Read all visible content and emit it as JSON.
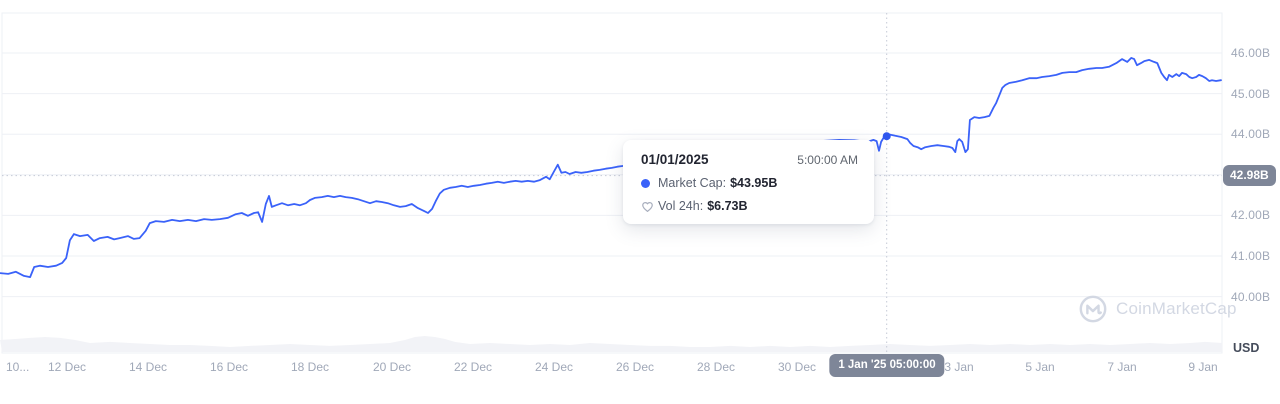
{
  "colors": {
    "line": "#3a62f9",
    "hover_dot": "#2e56ee",
    "badge_bg": "#7e8698",
    "axis_text": "#a0a8b8",
    "gridline": "#eef0f5",
    "volume_fill": "#f2f3f7",
    "crosshair": "#c5cad6",
    "watermark": "#d3d8e3"
  },
  "tooltip": {
    "date": "01/01/2025",
    "time": "5:00:00 AM",
    "rows": [
      {
        "icon": "market-cap-dot",
        "label": "Market Cap:",
        "value": "$43.95B"
      },
      {
        "icon": "heart",
        "label": "Vol 24h:",
        "value": "$6.73B"
      }
    ]
  },
  "crosshair": {
    "x_label": "1 Jan '25 05:00:00",
    "y_label": "42.98B",
    "day_index": 22.208,
    "value_b": 42.98
  },
  "y_axis": {
    "unit_label": "USD",
    "ticks": [
      {
        "label": "46.00B",
        "value": 46
      },
      {
        "label": "45.00B",
        "value": 45
      },
      {
        "label": "44.00B",
        "value": 44
      },
      {
        "label": "42.00B",
        "value": 42
      },
      {
        "label": "41.00B",
        "value": 41
      },
      {
        "label": "40.00B",
        "value": 40
      }
    ]
  },
  "x_axis": {
    "ticks": [
      {
        "label": "10...",
        "day": 0,
        "edge": true
      },
      {
        "label": "12 Dec",
        "day": 2
      },
      {
        "label": "14 Dec",
        "day": 4
      },
      {
        "label": "16 Dec",
        "day": 6
      },
      {
        "label": "18 Dec",
        "day": 8
      },
      {
        "label": "20 Dec",
        "day": 10
      },
      {
        "label": "22 Dec",
        "day": 12
      },
      {
        "label": "24 Dec",
        "day": 14
      },
      {
        "label": "26 Dec",
        "day": 16
      },
      {
        "label": "28 Dec",
        "day": 18
      },
      {
        "label": "30 Dec",
        "day": 20
      },
      {
        "label": "3 Jan",
        "day": 24
      },
      {
        "label": "5 Jan",
        "day": 26
      },
      {
        "label": "7 Jan",
        "day": 28
      },
      {
        "label": "9 Jan",
        "day": 30
      }
    ]
  },
  "watermark": {
    "text": "CoinMarketCap"
  },
  "chart_data": {
    "type": "line",
    "x_unit": "days since 10 Dec 00:00",
    "x_range_days": [
      0.35,
      30.45
    ],
    "ylim": [
      40,
      46
    ],
    "y_unit": "USD billions",
    "y_gridlines": [
      40,
      41,
      42,
      43,
      44,
      45,
      46
    ],
    "legend_position": "none",
    "grid": "horizontal",
    "hover_point": {
      "day": 22.21,
      "value_b": 43.95,
      "date": "01/01/2025",
      "time": "5:00:00 AM",
      "market_cap": "$43.95B",
      "vol_24h": "$6.73B"
    },
    "series": [
      {
        "name": "Market Cap",
        "points": [
          [
            0.35,
            40.58
          ],
          [
            0.55,
            40.56
          ],
          [
            0.74,
            40.61
          ],
          [
            0.94,
            40.51
          ],
          [
            1.09,
            40.48
          ],
          [
            1.19,
            40.73
          ],
          [
            1.33,
            40.76
          ],
          [
            1.53,
            40.73
          ],
          [
            1.73,
            40.76
          ],
          [
            1.88,
            40.83
          ],
          [
            1.98,
            40.95
          ],
          [
            2.07,
            41.39
          ],
          [
            2.17,
            41.54
          ],
          [
            2.32,
            41.49
          ],
          [
            2.51,
            41.52
          ],
          [
            2.66,
            41.37
          ],
          [
            2.81,
            41.44
          ],
          [
            3.0,
            41.47
          ],
          [
            3.16,
            41.41
          ],
          [
            3.3,
            41.44
          ],
          [
            3.5,
            41.49
          ],
          [
            3.65,
            41.42
          ],
          [
            3.79,
            41.44
          ],
          [
            3.94,
            41.62
          ],
          [
            4.04,
            41.81
          ],
          [
            4.19,
            41.86
          ],
          [
            4.39,
            41.84
          ],
          [
            4.59,
            41.89
          ],
          [
            4.78,
            41.86
          ],
          [
            4.98,
            41.89
          ],
          [
            5.18,
            41.86
          ],
          [
            5.38,
            41.91
          ],
          [
            5.57,
            41.89
          ],
          [
            5.77,
            41.91
          ],
          [
            5.97,
            41.94
          ],
          [
            6.16,
            42.03
          ],
          [
            6.31,
            42.06
          ],
          [
            6.46,
            41.99
          ],
          [
            6.61,
            42.06
          ],
          [
            6.71,
            42.08
          ],
          [
            6.81,
            41.84
          ],
          [
            6.9,
            42.28
          ],
          [
            6.98,
            42.48
          ],
          [
            7.05,
            42.21
          ],
          [
            7.15,
            42.25
          ],
          [
            7.3,
            42.3
          ],
          [
            7.45,
            42.25
          ],
          [
            7.6,
            42.28
          ],
          [
            7.74,
            42.25
          ],
          [
            7.89,
            42.3
          ],
          [
            7.99,
            42.38
          ],
          [
            8.11,
            42.43
          ],
          [
            8.28,
            42.45
          ],
          [
            8.43,
            42.48
          ],
          [
            8.58,
            42.45
          ],
          [
            8.73,
            42.48
          ],
          [
            8.87,
            42.45
          ],
          [
            9.02,
            42.43
          ],
          [
            9.17,
            42.4
          ],
          [
            9.32,
            42.35
          ],
          [
            9.47,
            42.3
          ],
          [
            9.62,
            42.35
          ],
          [
            9.76,
            42.33
          ],
          [
            9.91,
            42.3
          ],
          [
            10.06,
            42.25
          ],
          [
            10.21,
            42.21
          ],
          [
            10.35,
            42.23
          ],
          [
            10.5,
            42.28
          ],
          [
            10.65,
            42.18
          ],
          [
            10.8,
            42.11
          ],
          [
            10.9,
            42.06
          ],
          [
            11.0,
            42.16
          ],
          [
            11.09,
            42.35
          ],
          [
            11.19,
            42.54
          ],
          [
            11.29,
            42.63
          ],
          [
            11.44,
            42.68
          ],
          [
            11.58,
            42.7
          ],
          [
            11.73,
            42.73
          ],
          [
            11.88,
            42.7
          ],
          [
            12.03,
            42.73
          ],
          [
            12.18,
            42.75
          ],
          [
            12.33,
            42.78
          ],
          [
            12.47,
            42.8
          ],
          [
            12.62,
            42.83
          ],
          [
            12.77,
            42.8
          ],
          [
            12.92,
            42.83
          ],
          [
            13.06,
            42.85
          ],
          [
            13.21,
            42.83
          ],
          [
            13.36,
            42.85
          ],
          [
            13.51,
            42.83
          ],
          [
            13.66,
            42.87
          ],
          [
            13.81,
            42.95
          ],
          [
            13.9,
            42.89
          ],
          [
            14.0,
            43.07
          ],
          [
            14.1,
            43.25
          ],
          [
            14.19,
            43.05
          ],
          [
            14.29,
            43.07
          ],
          [
            14.39,
            43.02
          ],
          [
            14.54,
            43.07
          ],
          [
            14.68,
            43.05
          ],
          [
            14.83,
            43.07
          ],
          [
            14.98,
            43.1
          ],
          [
            15.13,
            43.12
          ],
          [
            15.28,
            43.15
          ],
          [
            15.43,
            43.17
          ],
          [
            15.57,
            43.2
          ],
          [
            15.72,
            43.22
          ],
          [
            16.12,
            43.27
          ],
          [
            16.61,
            43.34
          ],
          [
            17.1,
            43.41
          ],
          [
            17.6,
            43.49
          ],
          [
            18.09,
            43.56
          ],
          [
            18.58,
            43.63
          ],
          [
            19.07,
            43.69
          ],
          [
            19.57,
            43.74
          ],
          [
            20.06,
            43.79
          ],
          [
            20.55,
            43.83
          ],
          [
            21.04,
            43.86
          ],
          [
            21.41,
            43.85
          ],
          [
            21.59,
            43.83
          ],
          [
            21.73,
            43.81
          ],
          [
            21.88,
            43.86
          ],
          [
            21.96,
            43.83
          ],
          [
            22.02,
            43.59
          ],
          [
            22.07,
            43.81
          ],
          [
            22.13,
            43.91
          ],
          [
            22.21,
            43.95
          ],
          [
            22.29,
            43.99
          ],
          [
            22.42,
            43.96
          ],
          [
            22.57,
            43.93
          ],
          [
            22.72,
            43.88
          ],
          [
            22.79,
            43.78
          ],
          [
            22.87,
            43.71
          ],
          [
            22.97,
            43.68
          ],
          [
            23.06,
            43.63
          ],
          [
            23.16,
            43.68
          ],
          [
            23.31,
            43.71
          ],
          [
            23.46,
            43.73
          ],
          [
            23.61,
            43.71
          ],
          [
            23.75,
            43.69
          ],
          [
            23.83,
            43.66
          ],
          [
            23.9,
            43.56
          ],
          [
            23.95,
            43.83
          ],
          [
            24.0,
            43.88
          ],
          [
            24.07,
            43.81
          ],
          [
            24.15,
            43.56
          ],
          [
            24.21,
            43.63
          ],
          [
            24.26,
            44.35
          ],
          [
            24.37,
            44.42
          ],
          [
            24.49,
            44.4
          ],
          [
            24.62,
            44.42
          ],
          [
            24.74,
            44.45
          ],
          [
            24.84,
            44.65
          ],
          [
            24.91,
            44.77
          ],
          [
            24.99,
            44.97
          ],
          [
            25.06,
            45.14
          ],
          [
            25.13,
            45.21
          ],
          [
            25.23,
            45.26
          ],
          [
            25.4,
            45.29
          ],
          [
            25.55,
            45.33
          ],
          [
            25.72,
            45.38
          ],
          [
            25.9,
            45.38
          ],
          [
            26.04,
            45.41
          ],
          [
            26.22,
            45.43
          ],
          [
            26.39,
            45.46
          ],
          [
            26.54,
            45.51
          ],
          [
            26.71,
            45.53
          ],
          [
            26.88,
            45.53
          ],
          [
            27.03,
            45.58
          ],
          [
            27.2,
            45.61
          ],
          [
            27.38,
            45.63
          ],
          [
            27.52,
            45.63
          ],
          [
            27.69,
            45.66
          ],
          [
            27.87,
            45.75
          ],
          [
            28.01,
            45.85
          ],
          [
            28.14,
            45.78
          ],
          [
            28.24,
            45.88
          ],
          [
            28.31,
            45.85
          ],
          [
            28.38,
            45.7
          ],
          [
            28.48,
            45.75
          ],
          [
            28.56,
            45.8
          ],
          [
            28.68,
            45.83
          ],
          [
            28.8,
            45.78
          ],
          [
            28.88,
            45.75
          ],
          [
            28.98,
            45.51
          ],
          [
            29.05,
            45.41
          ],
          [
            29.12,
            45.33
          ],
          [
            29.17,
            45.46
          ],
          [
            29.25,
            45.41
          ],
          [
            29.35,
            45.48
          ],
          [
            29.42,
            45.43
          ],
          [
            29.49,
            45.51
          ],
          [
            29.59,
            45.48
          ],
          [
            29.67,
            45.41
          ],
          [
            29.74,
            45.38
          ],
          [
            29.84,
            45.41
          ],
          [
            29.91,
            45.46
          ],
          [
            29.99,
            45.43
          ],
          [
            30.08,
            45.38
          ],
          [
            30.16,
            45.31
          ],
          [
            30.23,
            45.33
          ],
          [
            30.33,
            45.31
          ],
          [
            30.45,
            45.33
          ]
        ]
      }
    ],
    "volume_profile_norm": [
      [
        0.35,
        0.75
      ],
      [
        0.72,
        0.81
      ],
      [
        1.09,
        0.88
      ],
      [
        1.46,
        0.94
      ],
      [
        1.83,
        0.88
      ],
      [
        2.2,
        0.75
      ],
      [
        2.57,
        0.56
      ],
      [
        3.06,
        0.63
      ],
      [
        3.55,
        0.56
      ],
      [
        4.05,
        0.5
      ],
      [
        4.54,
        0.44
      ],
      [
        5.03,
        0.44
      ],
      [
        5.52,
        0.38
      ],
      [
        6.02,
        0.31
      ],
      [
        6.51,
        0.38
      ],
      [
        7.0,
        0.44
      ],
      [
        7.5,
        0.5
      ],
      [
        7.99,
        0.44
      ],
      [
        8.48,
        0.38
      ],
      [
        8.98,
        0.44
      ],
      [
        9.47,
        0.5
      ],
      [
        9.96,
        0.56
      ],
      [
        10.33,
        0.75
      ],
      [
        10.58,
        0.94
      ],
      [
        10.82,
        1.0
      ],
      [
        11.07,
        0.94
      ],
      [
        11.32,
        0.81
      ],
      [
        11.56,
        0.63
      ],
      [
        11.93,
        0.5
      ],
      [
        12.43,
        0.56
      ],
      [
        12.92,
        0.5
      ],
      [
        13.41,
        0.44
      ],
      [
        13.91,
        0.5
      ],
      [
        14.4,
        0.44
      ],
      [
        14.89,
        0.56
      ],
      [
        15.39,
        0.5
      ],
      [
        15.88,
        0.44
      ],
      [
        16.37,
        0.38
      ],
      [
        16.87,
        0.38
      ],
      [
        17.36,
        0.31
      ],
      [
        17.85,
        0.31
      ],
      [
        18.35,
        0.38
      ],
      [
        18.84,
        0.31
      ],
      [
        19.33,
        0.38
      ],
      [
        19.83,
        0.31
      ],
      [
        20.32,
        0.38
      ],
      [
        20.81,
        0.31
      ],
      [
        21.31,
        0.38
      ],
      [
        21.8,
        0.44
      ],
      [
        22.29,
        0.5
      ],
      [
        22.78,
        0.44
      ],
      [
        23.28,
        0.38
      ],
      [
        23.77,
        0.44
      ],
      [
        24.26,
        0.5
      ],
      [
        24.76,
        0.44
      ],
      [
        25.25,
        0.5
      ],
      [
        25.74,
        0.44
      ],
      [
        26.24,
        0.5
      ],
      [
        26.73,
        0.44
      ],
      [
        27.22,
        0.5
      ],
      [
        27.72,
        0.44
      ],
      [
        28.21,
        0.5
      ],
      [
        28.7,
        0.56
      ],
      [
        29.2,
        0.5
      ],
      [
        29.69,
        0.56
      ],
      [
        30.06,
        0.63
      ],
      [
        30.48,
        0.56
      ]
    ]
  }
}
